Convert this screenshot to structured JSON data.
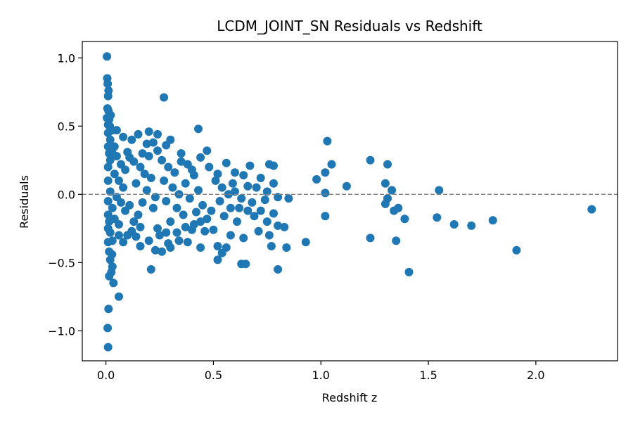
{
  "chart_data": {
    "type": "scatter",
    "title": "LCDM_JOINT_SN Residuals vs Redshift",
    "xlabel": "Redshift z",
    "ylabel": "Residuals",
    "xlim": [
      -0.11,
      2.38
    ],
    "ylim": [
      -1.22,
      1.12
    ],
    "xticks": [
      0.0,
      0.5,
      1.0,
      1.5,
      2.0
    ],
    "xtick_labels": [
      "0.0",
      "0.5",
      "1.0",
      "1.5",
      "2.0"
    ],
    "yticks": [
      -1.0,
      -0.5,
      0.0,
      0.5,
      1.0
    ],
    "ytick_labels": [
      "−1.0",
      "−0.5",
      "0.0",
      "0.5",
      "1.0"
    ],
    "reference_line": {
      "y": 0,
      "style": "dashed",
      "color": "#808080"
    },
    "marker_color": "#1f77b4",
    "grid": false,
    "points": [
      [
        0.005,
        1.01
      ],
      [
        0.006,
        0.85
      ],
      [
        0.008,
        0.81
      ],
      [
        0.01,
        0.72
      ],
      [
        0.012,
        0.76
      ],
      [
        0.007,
        0.63
      ],
      [
        0.012,
        0.61
      ],
      [
        0.005,
        0.56
      ],
      [
        0.015,
        0.55
      ],
      [
        0.022,
        0.58
      ],
      [
        0.01,
        0.51
      ],
      [
        0.018,
        0.5
      ],
      [
        0.03,
        0.47
      ],
      [
        0.05,
        0.47
      ],
      [
        0.012,
        -0.84
      ],
      [
        0.008,
        -0.98
      ],
      [
        0.01,
        -1.12
      ],
      [
        0.015,
        -0.6
      ],
      [
        0.025,
        -0.57
      ],
      [
        0.03,
        -0.53
      ],
      [
        0.02,
        -0.48
      ],
      [
        0.028,
        -0.44
      ],
      [
        0.035,
        -0.65
      ],
      [
        0.06,
        -0.75
      ],
      [
        0.015,
        -0.42
      ],
      [
        0.27,
        0.71
      ],
      [
        0.43,
        0.48
      ],
      [
        0.2,
        0.46
      ],
      [
        0.24,
        0.44
      ],
      [
        0.15,
        0.44
      ],
      [
        0.08,
        0.42
      ],
      [
        0.12,
        0.4
      ],
      [
        0.3,
        0.4
      ],
      [
        0.22,
        0.38
      ],
      [
        0.19,
        0.37
      ],
      [
        0.28,
        0.36
      ],
      [
        0.47,
        0.32
      ],
      [
        0.1,
        0.31
      ],
      [
        0.17,
        0.3
      ],
      [
        0.35,
        0.3
      ],
      [
        0.44,
        0.27
      ],
      [
        0.56,
        0.23
      ],
      [
        0.76,
        0.22
      ],
      [
        0.67,
        0.21
      ],
      [
        0.78,
        0.21
      ],
      [
        0.6,
        0.16
      ],
      [
        0.52,
        0.15
      ],
      [
        0.48,
        0.2
      ],
      [
        0.4,
        0.18
      ],
      [
        0.64,
        0.14
      ],
      [
        0.72,
        0.12
      ],
      [
        0.59,
        0.08
      ],
      [
        0.66,
        0.06
      ],
      [
        0.78,
        0.08
      ],
      [
        0.7,
        0.05
      ],
      [
        0.75,
        0.02
      ],
      [
        0.8,
        -0.02
      ],
      [
        0.85,
        -0.03
      ],
      [
        0.74,
        -0.04
      ],
      [
        0.68,
        -0.06
      ],
      [
        0.62,
        -0.1
      ],
      [
        0.72,
        -0.12
      ],
      [
        0.78,
        -0.14
      ],
      [
        0.69,
        -0.16
      ],
      [
        0.75,
        -0.2
      ],
      [
        0.83,
        -0.24
      ],
      [
        0.8,
        -0.23
      ],
      [
        0.71,
        -0.27
      ],
      [
        0.76,
        -0.3
      ],
      [
        0.64,
        -0.32
      ],
      [
        0.58,
        -0.3
      ],
      [
        0.52,
        -0.38
      ],
      [
        0.56,
        -0.39
      ],
      [
        0.54,
        -0.43
      ],
      [
        0.52,
        -0.48
      ],
      [
        0.63,
        -0.51
      ],
      [
        0.65,
        -0.51
      ],
      [
        0.77,
        -0.38
      ],
      [
        0.84,
        -0.39
      ],
      [
        0.8,
        -0.55
      ],
      [
        0.44,
        -0.39
      ],
      [
        0.38,
        -0.35
      ],
      [
        0.34,
        -0.34
      ],
      [
        0.3,
        -0.39
      ],
      [
        0.29,
        -0.36
      ],
      [
        0.23,
        -0.41
      ],
      [
        0.26,
        -0.42
      ],
      [
        0.21,
        -0.55
      ],
      [
        0.16,
        -0.38
      ],
      [
        0.2,
        -0.34
      ],
      [
        0.12,
        -0.27
      ],
      [
        0.1,
        -0.3
      ],
      [
        0.08,
        -0.35
      ],
      [
        0.06,
        -0.3
      ],
      [
        0.14,
        -0.31
      ],
      [
        0.25,
        -0.3
      ],
      [
        0.33,
        -0.28
      ],
      [
        0.4,
        -0.26
      ],
      [
        0.46,
        -0.27
      ],
      [
        0.5,
        -0.26
      ],
      [
        0.93,
        -0.35
      ],
      [
        0.98,
        0.11
      ],
      [
        1.02,
        0.16
      ],
      [
        1.05,
        0.22
      ],
      [
        1.03,
        0.39
      ],
      [
        1.02,
        0.01
      ],
      [
        1.02,
        -0.16
      ],
      [
        1.12,
        0.06
      ],
      [
        1.23,
        0.25
      ],
      [
        1.23,
        -0.32
      ],
      [
        1.31,
        0.22
      ],
      [
        1.3,
        0.08
      ],
      [
        1.31,
        -0.03
      ],
      [
        1.33,
        0.03
      ],
      [
        1.3,
        -0.07
      ],
      [
        1.34,
        -0.12
      ],
      [
        1.36,
        -0.1
      ],
      [
        1.39,
        -0.18
      ],
      [
        1.35,
        -0.34
      ],
      [
        1.41,
        -0.57
      ],
      [
        1.55,
        0.03
      ],
      [
        1.54,
        -0.17
      ],
      [
        1.62,
        -0.22
      ],
      [
        1.7,
        -0.23
      ],
      [
        1.8,
        -0.19
      ],
      [
        1.91,
        -0.41
      ],
      [
        2.26,
        -0.11
      ],
      [
        0.02,
        0.4
      ],
      [
        0.04,
        0.35
      ],
      [
        0.03,
        0.3
      ],
      [
        0.02,
        0.25
      ],
      [
        0.05,
        0.28
      ],
      [
        0.07,
        0.22
      ],
      [
        0.09,
        0.18
      ],
      [
        0.04,
        0.15
      ],
      [
        0.06,
        0.1
      ],
      [
        0.08,
        0.05
      ],
      [
        0.02,
        0.02
      ],
      [
        0.05,
        -0.02
      ],
      [
        0.07,
        -0.06
      ],
      [
        0.03,
        -0.1
      ],
      [
        0.09,
        -0.12
      ],
      [
        0.11,
        -0.08
      ],
      [
        0.04,
        -0.18
      ],
      [
        0.06,
        -0.22
      ],
      [
        0.02,
        -0.28
      ],
      [
        0.03,
        -0.34
      ],
      [
        0.13,
        0.24
      ],
      [
        0.16,
        0.2
      ],
      [
        0.18,
        0.15
      ],
      [
        0.21,
        0.12
      ],
      [
        0.14,
        0.08
      ],
      [
        0.19,
        0.03
      ],
      [
        0.23,
        -0.02
      ],
      [
        0.17,
        -0.06
      ],
      [
        0.22,
        -0.1
      ],
      [
        0.15,
        -0.15
      ],
      [
        0.26,
        0.25
      ],
      [
        0.29,
        0.2
      ],
      [
        0.32,
        0.16
      ],
      [
        0.27,
        0.1
      ],
      [
        0.31,
        0.05
      ],
      [
        0.34,
        0.0
      ],
      [
        0.28,
        -0.05
      ],
      [
        0.33,
        -0.1
      ],
      [
        0.36,
        -0.15
      ],
      [
        0.3,
        -0.2
      ],
      [
        0.38,
        0.22
      ],
      [
        0.41,
        0.14
      ],
      [
        0.37,
        0.08
      ],
      [
        0.43,
        0.03
      ],
      [
        0.39,
        -0.03
      ],
      [
        0.45,
        -0.08
      ],
      [
        0.42,
        -0.13
      ],
      [
        0.47,
        -0.18
      ],
      [
        0.41,
        -0.22
      ],
      [
        0.49,
        -0.12
      ],
      [
        0.51,
        0.1
      ],
      [
        0.54,
        0.05
      ],
      [
        0.57,
        0.0
      ],
      [
        0.53,
        -0.05
      ],
      [
        0.58,
        -0.1
      ],
      [
        0.55,
        -0.16
      ],
      [
        0.61,
        -0.2
      ],
      [
        0.6,
        0.02
      ],
      [
        0.63,
        -0.03
      ],
      [
        0.66,
        -0.12
      ],
      [
        0.24,
        0.32
      ],
      [
        0.2,
        0.28
      ],
      [
        0.11,
        0.27
      ],
      [
        0.35,
        0.24
      ],
      [
        0.16,
        -0.24
      ],
      [
        0.24,
        -0.25
      ],
      [
        0.37,
        -0.24
      ],
      [
        0.13,
        -0.2
      ],
      [
        0.28,
        -0.28
      ],
      [
        0.44,
        -0.2
      ],
      [
        0.01,
        0.45
      ],
      [
        0.01,
        0.35
      ],
      [
        0.01,
        0.2
      ],
      [
        0.01,
        0.1
      ],
      [
        0.01,
        -0.05
      ],
      [
        0.01,
        -0.15
      ],
      [
        0.01,
        -0.25
      ],
      [
        0.01,
        -0.35
      ],
      [
        0.015,
        0.3
      ],
      [
        0.015,
        -0.2
      ]
    ]
  }
}
